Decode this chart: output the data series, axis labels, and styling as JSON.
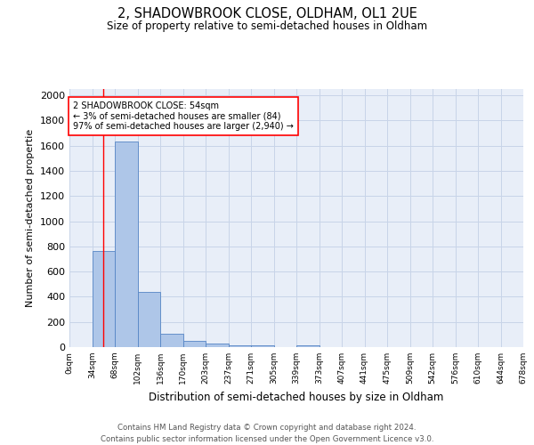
{
  "title1": "2, SHADOWBROOK CLOSE, OLDHAM, OL1 2UE",
  "title2": "Size of property relative to semi-detached houses in Oldham",
  "xlabel": "Distribution of semi-detached houses by size in Oldham",
  "ylabel": "Number of semi-detached propertie",
  "footer1": "Contains HM Land Registry data © Crown copyright and database right 2024.",
  "footer2": "Contains public sector information licensed under the Open Government Licence v3.0.",
  "bin_labels": [
    "0sqm",
    "34sqm",
    "68sqm",
    "102sqm",
    "136sqm",
    "170sqm",
    "203sqm",
    "237sqm",
    "271sqm",
    "305sqm",
    "339sqm",
    "373sqm",
    "407sqm",
    "441sqm",
    "475sqm",
    "509sqm",
    "542sqm",
    "576sqm",
    "610sqm",
    "644sqm",
    "678sqm"
  ],
  "bar_values": [
    0,
    762,
    1631,
    441,
    109,
    47,
    28,
    16,
    15,
    0,
    15,
    0,
    0,
    0,
    0,
    0,
    0,
    0,
    0,
    0
  ],
  "bar_color": "#aec6e8",
  "bar_edge_color": "#5585c5",
  "red_line_x": 1.5,
  "annotation_box_text": "2 SHADOWBROOK CLOSE: 54sqm\n← 3% of semi-detached houses are smaller (84)\n97% of semi-detached houses are larger (2,940) →",
  "ylim": [
    0,
    2050
  ],
  "yticks": [
    0,
    200,
    400,
    600,
    800,
    1000,
    1200,
    1400,
    1600,
    1800,
    2000
  ],
  "grid_color": "#c8d4e8",
  "bg_color": "#e8eef8"
}
